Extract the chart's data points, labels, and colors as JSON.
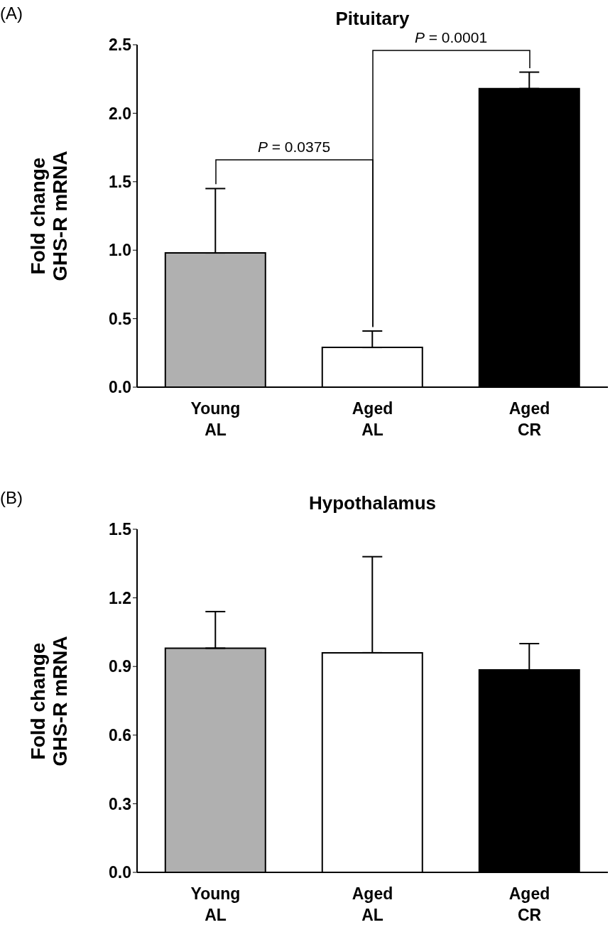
{
  "chart_data": [
    {
      "type": "bar",
      "title": "Pituitary",
      "ylabel": "Fold change\nGHS-R mRNA",
      "categories": [
        "Young\nAL",
        "Aged\nAL",
        "Aged\nCR"
      ],
      "values": [
        0.98,
        0.29,
        2.18
      ],
      "colors": [
        "#b0b0b0",
        "#ffffff",
        "#000000"
      ],
      "errors": [
        [
          0.98,
          1.45
        ],
        [
          0.29,
          0.41
        ],
        [
          2.18,
          2.3
        ]
      ],
      "ylim": [
        0,
        2.5
      ],
      "yticks": [
        {
          "value": 0,
          "label": "0.0"
        },
        {
          "value": 0.5,
          "label": "0.5"
        },
        {
          "value": 1,
          "label": "1.0"
        },
        {
          "value": 1.5,
          "label": "1.5"
        },
        {
          "value": 2,
          "label": "2.0"
        },
        {
          "value": 2.5,
          "label": "2.5"
        }
      ],
      "grid": false,
      "legend": false,
      "annotations": [
        "(A)",
        "P = 0.0375",
        "P = 0.0001"
      ]
    },
    {
      "type": "bar",
      "title": "Hypothalamus",
      "ylabel": "Fold change\nGHS-R mRNA",
      "categories": [
        "Young\nAL",
        "Aged\nAL",
        "Aged\nCR"
      ],
      "values": [
        0.98,
        0.96,
        0.885
      ],
      "colors": [
        "#b0b0b0",
        "#ffffff",
        "#000000"
      ],
      "errors": [
        [
          0.98,
          1.14
        ],
        [
          0.96,
          1.38
        ],
        [
          0.885,
          1.0
        ]
      ],
      "ylim": [
        0,
        1.5
      ],
      "yticks": [
        {
          "value": 0,
          "label": "0.0"
        },
        {
          "value": 0.3,
          "label": "0.3"
        },
        {
          "value": 0.6,
          "label": "0.6"
        },
        {
          "value": 0.9,
          "label": "0.9"
        },
        {
          "value": 1.2,
          "label": "1.2"
        },
        {
          "value": 1.5,
          "label": "1.5"
        }
      ],
      "grid": false,
      "legend": false,
      "annotations": [
        "(B)"
      ]
    }
  ]
}
